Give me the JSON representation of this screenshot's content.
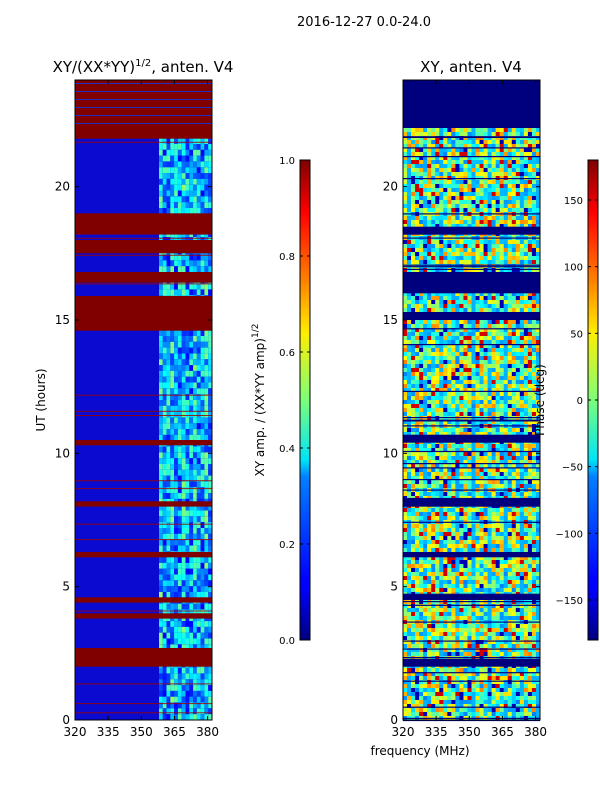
{
  "suptitle": "2016-12-27 0.0-24.0",
  "colors": {
    "red": "#800000",
    "navy": "#00007f",
    "blue": "#1a1aff",
    "cyan": "#33ddff",
    "green": "#7fff7f",
    "yellow": "#ffee00",
    "orange": "#ff5500"
  },
  "chart_data": [
    {
      "type": "heatmap",
      "title_main": "XY/(XX*YY)",
      "title_sup": "1/2",
      "title_tail": ", anten. V4",
      "xlabel": "",
      "ylabel": "UT (hours)",
      "xlim": [
        320,
        382
      ],
      "ylim": [
        0,
        24
      ],
      "xticks": [
        "320",
        "335",
        "350",
        "365",
        "380"
      ],
      "xtick_values": [
        320,
        335,
        350,
        365,
        380
      ],
      "yticks": [
        "0",
        "5",
        "10",
        "15",
        "20"
      ],
      "ytick_values": [
        0,
        5,
        10,
        15,
        20
      ],
      "bright_freq_range_mhz": [
        358,
        382
      ],
      "saturated_ut_bands_hours": [
        [
          21.8,
          24.0
        ],
        [
          18.2,
          19.0
        ],
        [
          17.5,
          18.0
        ],
        [
          16.4,
          16.8
        ],
        [
          14.6,
          15.9
        ],
        [
          10.3,
          10.5
        ],
        [
          8.0,
          8.2
        ],
        [
          6.1,
          6.3
        ],
        [
          4.4,
          4.6
        ],
        [
          3.8,
          4.0
        ],
        [
          2.0,
          2.7
        ]
      ],
      "colorbar": {
        "label_main": "XY amp. / (XX*YY amp)",
        "label_sup": "1/2",
        "range": [
          0.0,
          1.0
        ],
        "ticks": [
          "0.0",
          "0.2",
          "0.4",
          "0.6",
          "0.8",
          "1.0"
        ],
        "tick_values": [
          0.0,
          0.2,
          0.4,
          0.6,
          0.8,
          1.0
        ]
      }
    },
    {
      "type": "heatmap",
      "title": "XY, anten. V4",
      "xlabel": "frequency (MHz)",
      "ylabel": "",
      "xlim": [
        320,
        382
      ],
      "ylim": [
        0,
        24
      ],
      "xticks": [
        "320",
        "335",
        "350",
        "365",
        "380"
      ],
      "xtick_values": [
        320,
        335,
        350,
        365,
        380
      ],
      "yticks": [
        "0",
        "5",
        "10",
        "15",
        "20"
      ],
      "ytick_values": [
        0,
        5,
        10,
        15,
        20
      ],
      "flagged_ut_bands_hours": [
        [
          22.2,
          24.0
        ],
        [
          18.2,
          18.5
        ],
        [
          16.0,
          16.8
        ],
        [
          15.0,
          15.3
        ],
        [
          10.4,
          10.7
        ],
        [
          8.0,
          8.3
        ],
        [
          6.1,
          6.3
        ],
        [
          4.5,
          4.7
        ],
        [
          2.0,
          2.3
        ]
      ],
      "colorbar": {
        "label": "Phase (deg)",
        "range": [
          -180,
          180
        ],
        "ticks": [
          "−150",
          "−100",
          "−50",
          "0",
          "50",
          "100",
          "150"
        ],
        "tick_values": [
          -150,
          -100,
          -50,
          0,
          50,
          100,
          150
        ]
      }
    }
  ]
}
